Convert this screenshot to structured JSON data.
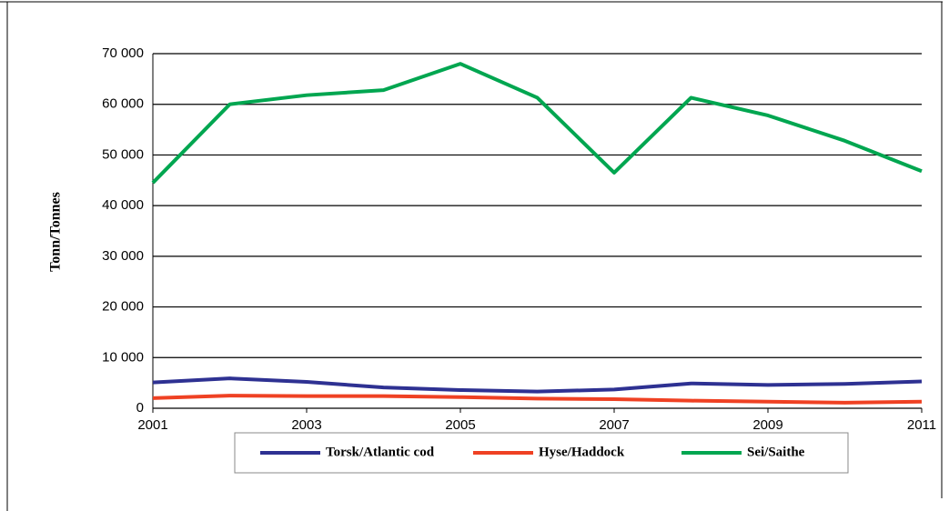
{
  "chart_data": {
    "type": "line",
    "y_label": "Tonn/Tonnes",
    "x": [
      2001,
      2002,
      2003,
      2004,
      2005,
      2006,
      2007,
      2008,
      2009,
      2010,
      2011
    ],
    "series": [
      {
        "name": "Torsk/Atlantic cod",
        "color": "#2e3192",
        "values": [
          5100,
          5900,
          5200,
          4100,
          3600,
          3300,
          3700,
          4900,
          4600,
          4800,
          5300
        ]
      },
      {
        "name": "Hyse/Haddock",
        "color": "#ef4123",
        "values": [
          2000,
          2500,
          2400,
          2400,
          2200,
          1900,
          1800,
          1500,
          1300,
          1100,
          1300
        ]
      },
      {
        "name": "Sei/Saithe",
        "color": "#00a650",
        "values": [
          44500,
          60000,
          61800,
          62800,
          68000,
          61300,
          46500,
          61300,
          57800,
          52800,
          46800
        ]
      }
    ],
    "xlim": [
      2001,
      2011
    ],
    "xticks": [
      2001,
      2003,
      2005,
      2007,
      2009,
      2011
    ],
    "ylim": [
      0,
      70000
    ],
    "yticks": [
      0,
      {
        "value": 10000,
        "label": "10 000"
      },
      {
        "value": 20000,
        "label": "20 000"
      },
      {
        "value": 30000,
        "label": "30 000"
      },
      {
        "value": 40000,
        "label": "40 000"
      },
      {
        "value": 50000,
        "label": "50 000"
      },
      {
        "value": 60000,
        "label": "60 000"
      },
      {
        "value": 70000,
        "label": "70 000"
      }
    ],
    "grid": true
  }
}
